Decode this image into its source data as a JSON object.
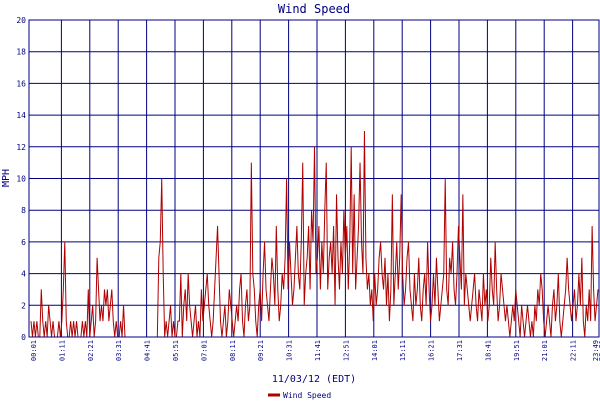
{
  "chart_data": {
    "type": "line",
    "title": "Wind Speed",
    "xlabel": "11/03/12 (EDT)",
    "ylabel": "MPH",
    "legend": "Wind Speed",
    "legend_position": "bottom-center",
    "grid": true,
    "ylim": [
      0,
      20
    ],
    "y_ticks": [
      0,
      2,
      4,
      6,
      8,
      10,
      12,
      14,
      16,
      18,
      20
    ],
    "x_ticks": [
      "00:01",
      "01:11",
      "02:21",
      "03:31",
      "04:41",
      "05:51",
      "07:01",
      "08:11",
      "09:21",
      "10:31",
      "11:41",
      "12:51",
      "14:01",
      "15:11",
      "16:21",
      "17:31",
      "18:41",
      "19:51",
      "21:01",
      "22:11",
      "23:21",
      "23:49"
    ],
    "x_range_minutes": [
      1,
      1429
    ],
    "sample_interval_minutes": 2,
    "series": [
      {
        "name": "Wind Speed",
        "values": [
          1,
          0,
          1,
          0,
          1,
          0,
          0,
          3,
          1,
          0,
          1,
          0,
          2,
          1,
          0,
          1,
          0,
          0,
          0,
          1,
          0,
          1,
          3,
          6,
          1,
          0,
          0,
          1,
          0,
          1,
          0,
          1,
          0,
          0,
          0,
          1,
          0,
          1,
          0,
          3,
          0,
          1,
          2,
          0,
          1,
          5,
          3,
          1,
          2,
          1,
          3,
          2,
          3,
          1,
          2,
          3,
          1,
          0,
          1,
          0,
          0,
          1,
          0,
          2,
          0,
          0,
          0,
          0,
          0,
          0,
          0,
          0,
          0,
          0,
          0,
          0,
          0,
          0,
          0,
          0,
          0,
          0,
          0,
          0,
          0,
          0,
          0,
          5,
          6,
          10,
          4,
          0,
          1,
          0,
          1,
          2,
          0,
          1,
          0,
          0,
          1,
          1,
          4,
          0,
          2,
          3,
          1,
          4,
          2,
          1,
          0,
          1,
          2,
          0,
          1,
          0,
          3,
          1,
          2,
          3,
          4,
          2,
          1,
          0,
          1,
          3,
          5,
          7,
          4,
          1,
          0,
          1,
          2,
          0,
          1,
          3,
          2,
          1,
          0,
          1,
          2,
          1,
          3,
          4,
          1,
          0,
          2,
          3,
          1,
          2,
          11,
          4,
          3,
          1,
          0,
          2,
          3,
          1,
          4,
          6,
          3,
          2,
          1,
          3,
          5,
          4,
          2,
          7,
          3,
          1,
          2,
          4,
          3,
          5,
          10,
          3,
          6,
          4,
          2,
          3,
          5,
          7,
          4,
          3,
          6,
          11,
          2,
          4,
          5,
          7,
          3,
          8,
          6,
          12,
          4,
          5,
          7,
          3,
          6,
          4,
          8,
          11,
          3,
          5,
          6,
          4,
          7,
          2,
          9,
          5,
          3,
          6,
          4,
          8,
          5,
          7,
          3,
          6,
          12,
          4,
          9,
          3,
          5,
          7,
          11,
          6,
          4,
          13,
          5,
          3,
          4,
          2,
          3,
          1,
          4,
          2,
          3,
          5,
          6,
          4,
          3,
          5,
          2,
          4,
          1,
          3,
          9,
          2,
          4,
          6,
          3,
          5,
          9,
          4,
          2,
          3,
          5,
          6,
          3,
          2,
          1,
          4,
          2,
          3,
          5,
          2,
          1,
          3,
          4,
          2,
          6,
          3,
          1,
          2,
          4,
          2,
          5,
          3,
          1,
          2,
          3,
          4,
          10,
          3,
          2,
          5,
          4,
          6,
          3,
          2,
          4,
          7,
          5,
          3,
          9,
          2,
          4,
          3,
          2,
          1,
          2,
          3,
          4,
          2,
          1,
          3,
          2,
          1,
          4,
          2,
          3,
          1,
          2,
          5,
          3,
          2,
          6,
          3,
          1,
          2,
          4,
          3,
          2,
          1,
          2,
          1,
          0,
          1,
          2,
          1,
          3,
          2,
          1,
          0,
          2,
          1,
          0,
          1,
          2,
          1,
          0,
          1,
          0,
          2,
          1,
          3,
          2,
          4,
          3,
          1,
          0,
          1,
          2,
          1,
          0,
          2,
          3,
          1,
          2,
          4,
          1,
          0,
          1,
          2,
          3,
          5,
          3,
          2,
          1,
          2,
          3,
          1,
          2,
          4,
          2,
          5,
          1,
          0,
          2,
          1,
          3,
          1,
          7,
          3,
          1,
          2,
          3
        ]
      }
    ],
    "colors": {
      "series": "#b00000",
      "grid": "#000080",
      "text": "#000080",
      "axis": "#000080"
    }
  }
}
